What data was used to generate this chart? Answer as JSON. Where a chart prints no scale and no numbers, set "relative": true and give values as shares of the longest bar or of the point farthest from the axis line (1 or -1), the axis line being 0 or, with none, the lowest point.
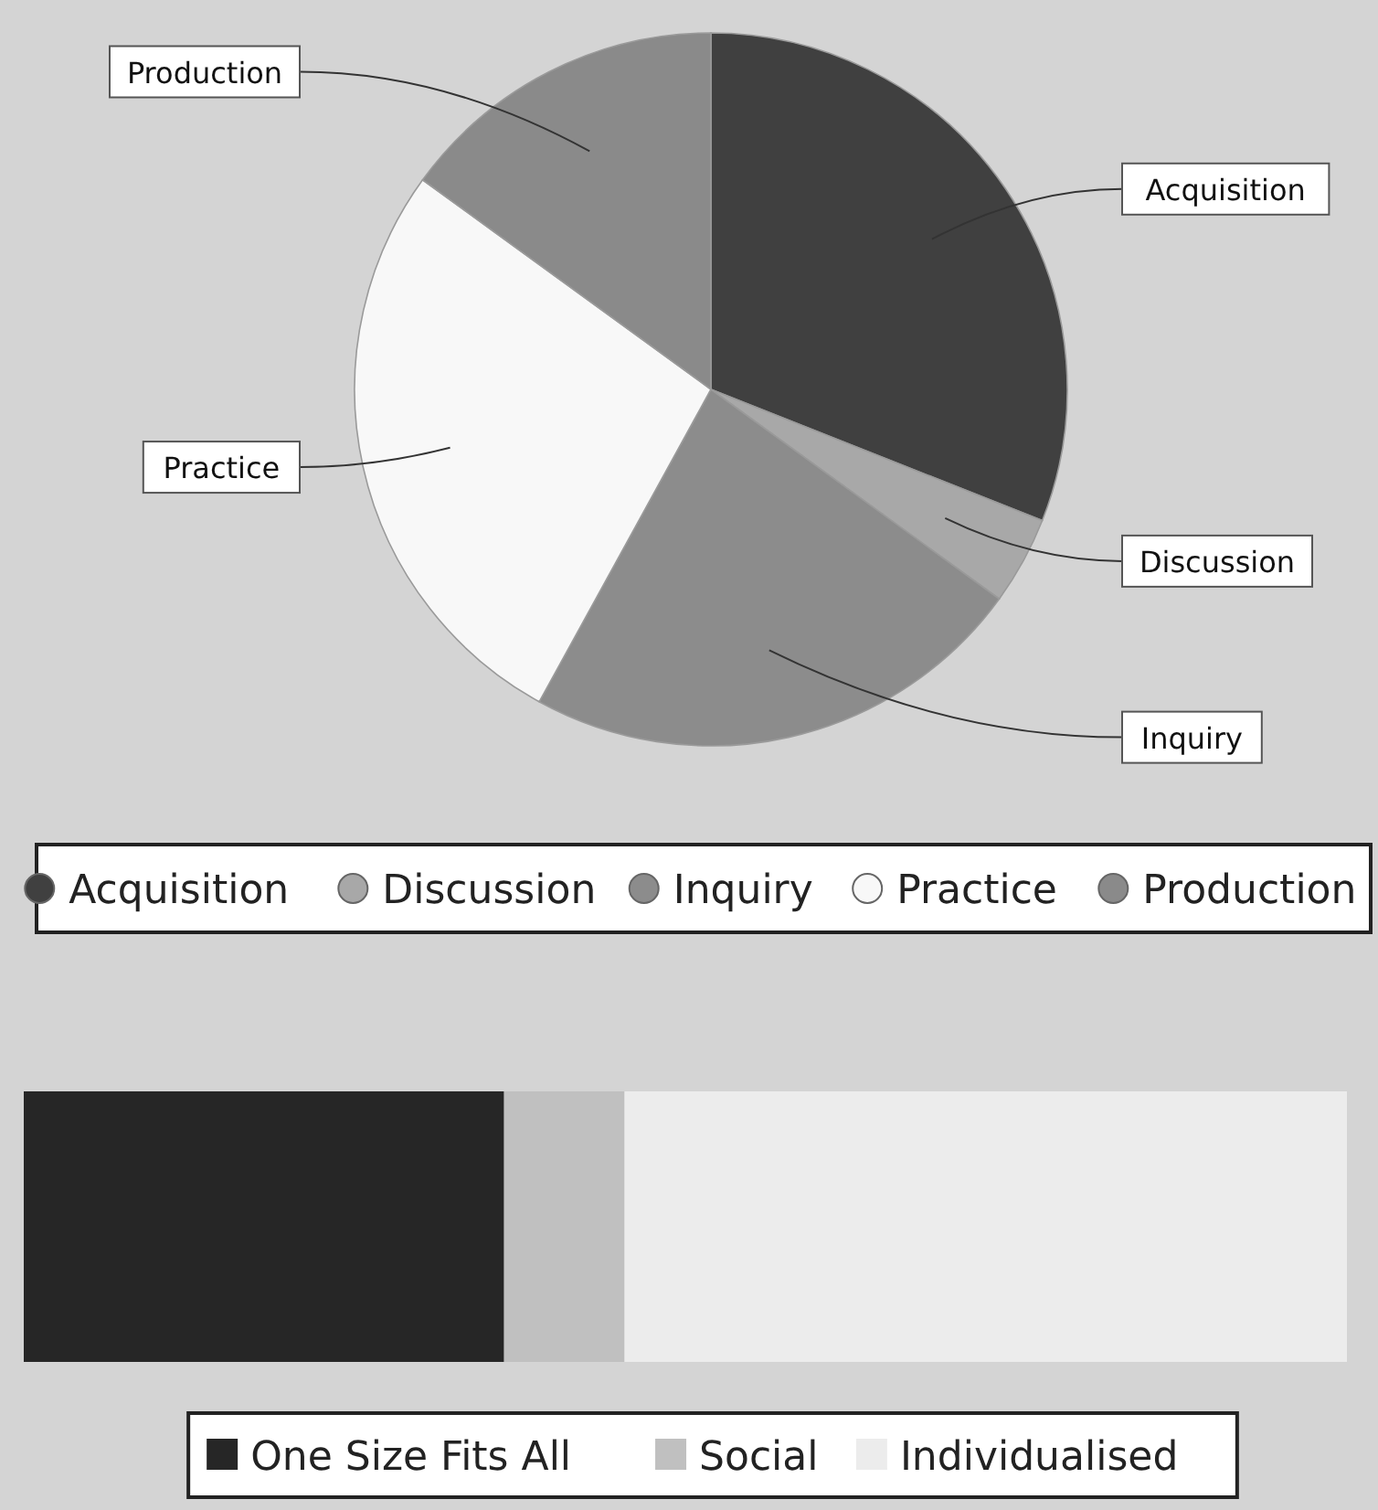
{
  "chart_data": [
    {
      "type": "pie",
      "categories": [
        "Acquisition",
        "Discussion",
        "Inquiry",
        "Practice",
        "Production"
      ],
      "values": [
        31,
        4,
        23,
        27,
        15
      ],
      "colors": [
        "#404040",
        "#a8a8a8",
        "#8c8c8c",
        "#f8f8f8",
        "#8a8a8a"
      ],
      "legend": "bottom"
    },
    {
      "type": "bar",
      "orientation": "horizontal",
      "stacked": true,
      "relative": true,
      "categories": [
        null
      ],
      "series": [
        {
          "name": "One Size Fits All",
          "color": "#262626",
          "values": [
            0.363
          ]
        },
        {
          "name": "Social",
          "color": "#c0c0c0",
          "values": [
            0.091
          ]
        },
        {
          "name": "Individualised",
          "color": "#ececec",
          "values": [
            0.546
          ]
        }
      ],
      "legend": "bottom"
    }
  ]
}
